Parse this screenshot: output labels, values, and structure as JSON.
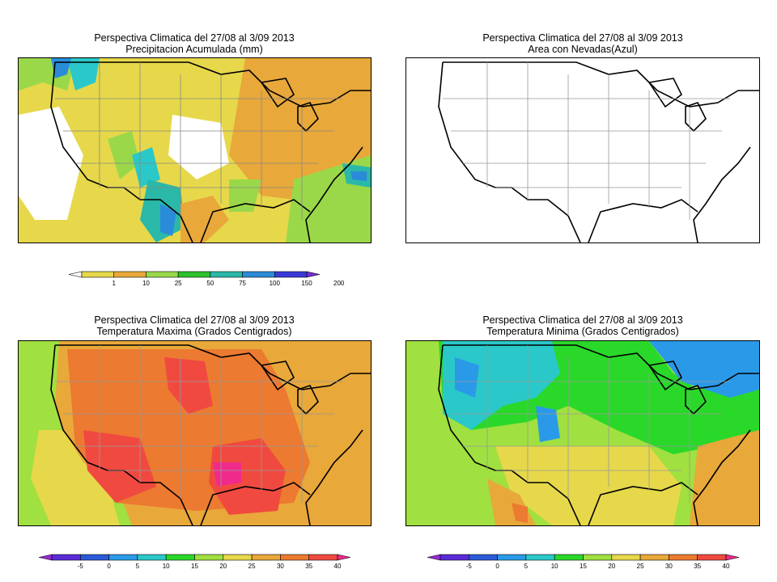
{
  "panels": [
    {
      "title_line1": "Perspectiva Climatica del 27/08 al 3/09 2013",
      "title_line2": "Precipitacion Acumulada (mm)",
      "variable": "precipitation",
      "colorbar": {
        "labels": [
          "1",
          "10",
          "25",
          "50",
          "75",
          "100",
          "150",
          "200"
        ],
        "colors": [
          "#ffffff",
          "#e6d84a",
          "#e8a83a",
          "#9ad84a",
          "#2cc22c",
          "#2ab8a8",
          "#2a8cd8",
          "#3a3ad8",
          "#7a2ad8"
        ]
      }
    },
    {
      "title_line1": "Perspectiva Climatica del 27/08 al 3/09 2013",
      "title_line2": "Area con Nevadas(Azul)",
      "variable": "snow",
      "colorbar": null
    },
    {
      "title_line1": "Perspectiva Climatica del 27/08 al 3/09 2013",
      "title_line2": "Temperatura Maxima (Grados Centigrados)",
      "variable": "tmax",
      "colorbar": {
        "labels": [
          "-5",
          "0",
          "5",
          "10",
          "15",
          "20",
          "25",
          "30",
          "35",
          "40"
        ],
        "colors": [
          "#9a2ad8",
          "#5a2ad8",
          "#2a5ad8",
          "#2a9ae8",
          "#2ac8c8",
          "#2ad82a",
          "#a0e040",
          "#e6d84a",
          "#e8a83a",
          "#ec7a30",
          "#f04a40",
          "#f02a8a"
        ]
      }
    },
    {
      "title_line1": "Perspectiva Climatica del 27/08 al 3/09 2013",
      "title_line2": "Temperatura Minima (Grados Centigrados)",
      "variable": "tmin",
      "colorbar": {
        "labels": [
          "-5",
          "0",
          "5",
          "10",
          "15",
          "20",
          "25",
          "30",
          "35",
          "40"
        ],
        "colors": [
          "#9a2ad8",
          "#5a2ad8",
          "#2a5ad8",
          "#2a9ae8",
          "#2ac8c8",
          "#2ad82a",
          "#a0e040",
          "#e6d84a",
          "#e8a83a",
          "#ec7a30",
          "#f04a40",
          "#f02a8a"
        ]
      }
    }
  ]
}
